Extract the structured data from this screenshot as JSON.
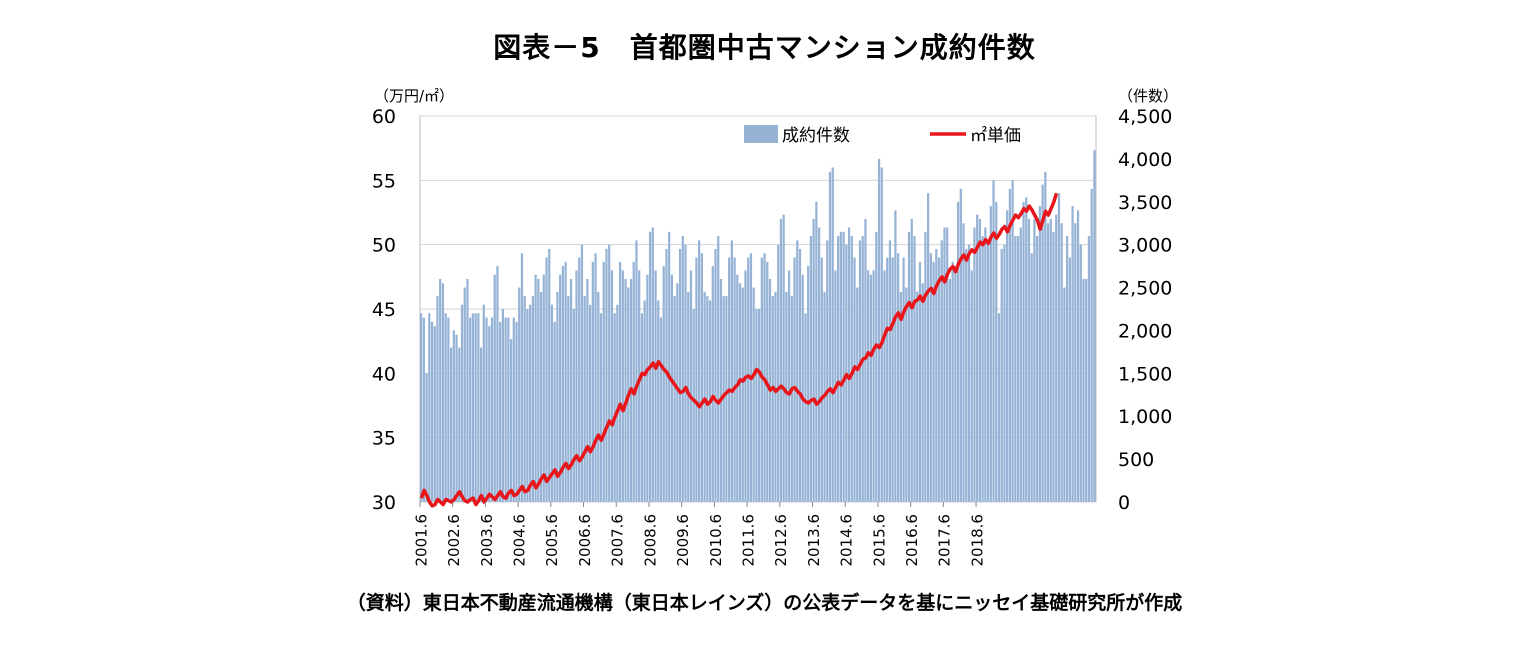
{
  "chart_data": {
    "type": "bar+line",
    "title": "図表－5　首都圏中古マンション成約件数",
    "source": "（資料）東日本不動産流通機構（東日本レインズ）の公表データを基にニッセイ基礎研究所が作成",
    "y_left": {
      "unit": "（万円/㎡）",
      "min": 30,
      "max": 60,
      "ticks": [
        "60",
        "55",
        "50",
        "45",
        "40",
        "35",
        "30"
      ]
    },
    "y_right": {
      "unit": "（件数）",
      "min": 0,
      "max": 4500,
      "ticks": [
        "4,500",
        "4,000",
        "3,500",
        "3,000",
        "2,500",
        "2,000",
        "1,500",
        "1,000",
        "500",
        "0"
      ]
    },
    "x_labels": [
      "2001.6",
      "2002.6",
      "2003.6",
      "2004.6",
      "2005.6",
      "2006.6",
      "2007.6",
      "2008.6",
      "2009.6",
      "2010.6",
      "2011.6",
      "2012.6",
      "2013.6",
      "2014.6",
      "2015.6",
      "2016.6",
      "2017.6",
      "2018.6"
    ],
    "grid": "horizontal",
    "legend_position": "top",
    "series": [
      {
        "name": "成約件数",
        "type": "bar",
        "axis": "right",
        "color": "#96b3d6",
        "values": [
          2200,
          2150,
          1500,
          2200,
          2100,
          2050,
          2400,
          2600,
          2550,
          2200,
          2150,
          1800,
          2000,
          1950,
          1800,
          2300,
          2500,
          2600,
          2150,
          2200,
          2200,
          2200,
          1800,
          2300,
          2150,
          2050,
          2150,
          2650,
          2750,
          2100,
          2250,
          2150,
          2150,
          1900,
          2150,
          2100,
          2500,
          2900,
          2400,
          2250,
          2300,
          2400,
          2650,
          2600,
          2450,
          2650,
          2850,
          2950,
          2300,
          2100,
          2450,
          2650,
          2750,
          2800,
          2400,
          2600,
          2250,
          2700,
          2850,
          3000,
          2400,
          2600,
          2300,
          2800,
          2900,
          2450,
          2200,
          2800,
          2950,
          3000,
          2700,
          2200,
          2300,
          2800,
          2700,
          2600,
          2500,
          2600,
          2800,
          3050,
          2700,
          2200,
          2350,
          2650,
          3150,
          3200,
          2700,
          2350,
          2150,
          2750,
          2950,
          3150,
          2650,
          2400,
          2550,
          2950,
          3100,
          3000,
          2450,
          2700,
          2250,
          2850,
          3050,
          2900,
          2450,
          2400,
          2350,
          2750,
          2950,
          3100,
          2600,
          2400,
          2400,
          2850,
          3050,
          2850,
          2650,
          2550,
          2500,
          2700,
          2850,
          2900,
          2500,
          2250,
          2250,
          2850,
          2900,
          2800,
          2600,
          2400,
          2450,
          3000,
          3300,
          3350,
          2450,
          2700,
          2400,
          2850,
          3050,
          2950,
          2650,
          2200,
          2750,
          3100,
          3300,
          3500,
          3200,
          2850,
          2450,
          3050,
          3850,
          3900,
          2700,
          3100,
          3150,
          3150,
          3000,
          3200,
          3100,
          2850,
          2500,
          3050,
          3100,
          3300,
          2700,
          2650,
          2700,
          3150,
          4000,
          3900,
          2700,
          2850,
          3050,
          2850,
          3400,
          2900,
          2450,
          2850,
          2500,
          3150,
          3300,
          3100,
          2450,
          2800,
          2550,
          3150,
          3600,
          2900,
          2800,
          2950,
          2850,
          3050,
          3200,
          3200,
          2600,
          2800,
          2750,
          3500,
          3650,
          3250,
          2950,
          3000,
          2700,
          3200,
          3350,
          3300,
          3100,
          3200,
          3000,
          3450,
          3750,
          3500,
          2200,
          2950,
          3000,
          3400,
          3650,
          3750,
          3100,
          3100,
          3200,
          3500,
          3550,
          3300,
          2900,
          3300,
          3100,
          3450,
          3700,
          3850,
          3250,
          3300,
          3150,
          3350,
          3600,
          3250,
          2500,
          3100,
          2850,
          3450,
          3250,
          3400,
          3000,
          2600,
          2600,
          3100,
          3650,
          4100
        ]
      },
      {
        "name": "㎡単価",
        "type": "line",
        "axis": "left",
        "color": "#e8161b",
        "values": [
          30.3,
          30.9,
          30.5,
          30.0,
          29.7,
          29.8,
          30.2,
          30.0,
          29.8,
          30.2,
          30.1,
          30.0,
          30.2,
          30.5,
          30.8,
          30.4,
          30.1,
          30.0,
          30.2,
          30.3,
          29.8,
          30.1,
          30.5,
          30.0,
          30.3,
          30.6,
          30.4,
          30.2,
          30.5,
          30.8,
          30.4,
          30.3,
          30.7,
          30.9,
          30.5,
          30.6,
          30.9,
          31.2,
          30.8,
          30.9,
          31.3,
          31.6,
          31.1,
          31.4,
          31.8,
          32.1,
          31.6,
          31.9,
          32.2,
          32.5,
          32.0,
          32.3,
          32.7,
          33.0,
          32.6,
          32.9,
          33.3,
          33.6,
          33.2,
          33.5,
          33.9,
          34.3,
          33.9,
          34.3,
          34.8,
          35.2,
          34.8,
          35.3,
          35.8,
          36.3,
          36.0,
          36.6,
          37.1,
          37.6,
          37.1,
          37.7,
          38.3,
          38.8,
          38.4,
          39.0,
          39.5,
          40.0,
          39.9,
          40.3,
          40.5,
          40.8,
          40.4,
          40.9,
          40.6,
          40.3,
          40.1,
          39.7,
          39.4,
          39.1,
          38.8,
          38.5,
          38.6,
          38.9,
          38.4,
          38.1,
          37.9,
          37.7,
          37.4,
          37.7,
          38.0,
          37.6,
          37.8,
          38.2,
          37.9,
          37.7,
          38.0,
          38.3,
          38.5,
          38.7,
          38.6,
          38.9,
          39.1,
          39.5,
          39.4,
          39.7,
          39.8,
          39.6,
          39.9,
          40.3,
          40.1,
          39.7,
          39.5,
          39.1,
          38.7,
          38.9,
          38.6,
          38.8,
          39.0,
          38.8,
          38.5,
          38.4,
          38.8,
          38.9,
          38.6,
          38.4,
          38.0,
          37.8,
          37.7,
          37.9,
          38.0,
          37.6,
          37.8,
          38.1,
          38.3,
          38.6,
          38.8,
          38.5,
          38.9,
          39.3,
          39.1,
          39.5,
          39.9,
          39.6,
          40.0,
          40.5,
          40.3,
          40.7,
          41.1,
          41.2,
          41.6,
          41.4,
          41.9,
          42.2,
          42.0,
          42.4,
          43.0,
          43.5,
          43.4,
          43.9,
          44.4,
          44.7,
          44.2,
          44.8,
          45.2,
          45.5,
          45.1,
          45.6,
          45.7,
          46.0,
          45.6,
          46.1,
          46.4,
          46.6,
          46.2,
          46.8,
          47.2,
          47.5,
          47.1,
          47.7,
          48.1,
          48.3,
          47.9,
          48.5,
          48.9,
          49.2,
          48.8,
          49.3,
          49.6,
          49.4,
          49.8,
          50.2,
          50.0,
          50.4,
          50.1,
          50.6,
          50.9,
          50.5,
          50.8,
          51.2,
          51.4,
          51.0,
          51.5,
          51.9,
          52.3,
          52.1,
          52.4,
          52.8,
          52.6,
          53.0,
          52.7,
          52.3,
          51.9,
          51.2,
          51.9,
          52.6,
          52.3,
          52.8,
          53.3,
          54.0
        ]
      }
    ]
  }
}
